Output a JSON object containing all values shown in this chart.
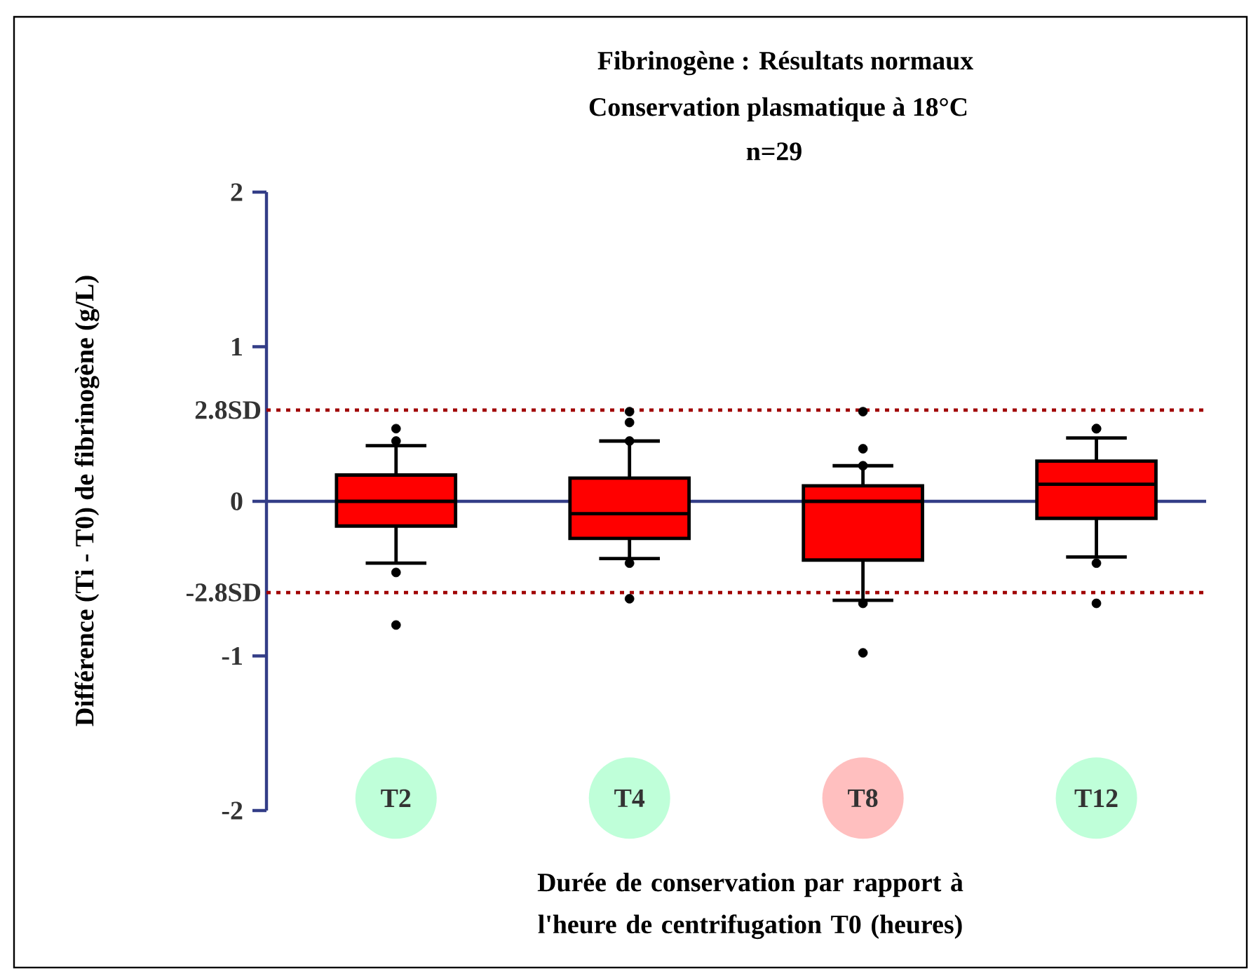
{
  "chart_data": {
    "type": "box",
    "title": "Fibrinogène : Résultats normaux",
    "subtitle": "Conservation plasmatique à 18°C",
    "annotations": [
      "n=29"
    ],
    "xlabel": "Durée de conservation par rapport à l'heure de centrifugation T0 (heures)",
    "ylabel": "Différence (Ti - T0) de fibrinogène (g/L)",
    "categories": [
      "T2",
      "T4",
      "T8",
      "T12"
    ],
    "color": "#ff0000",
    "boxes": [
      {
        "low": -0.4,
        "q1": -0.16,
        "median": 0,
        "q3": 0.17,
        "high": 0.36,
        "outliers": [
          0.47,
          0.39,
          -0.46,
          -0.8
        ]
      },
      {
        "low": -0.37,
        "q1": -0.24,
        "median": -0.08,
        "q3": 0.15,
        "high": 0.39,
        "outliers": [
          0.58,
          0.51,
          0.39,
          -0.4,
          -0.63
        ]
      },
      {
        "low": -0.64,
        "q1": -0.38,
        "median": 0,
        "q3": 0.1,
        "high": 0.23,
        "outliers": [
          0.58,
          0.34,
          0.23,
          -0.66,
          -0.98
        ]
      },
      {
        "low": -0.36,
        "q1": -0.11,
        "median": 0.11,
        "q3": 0.26,
        "high": 0.41,
        "outliers": [
          0.47,
          0.47,
          -0.4,
          -0.66
        ]
      }
    ],
    "ylim": [
      -2,
      2
    ],
    "yticks": [
      -2,
      -1,
      0,
      1,
      2
    ],
    "ref_lines": [
      {
        "axis": "y",
        "value": 0,
        "color": "#333d87",
        "line_style": "solid"
      },
      {
        "axis": "y",
        "value": 0.59,
        "label": "2.8SD",
        "color": "#a00000",
        "line_style": "dotted"
      },
      {
        "axis": "y",
        "value": -0.59,
        "label": "-2.8SD",
        "color": "#a00000",
        "line_style": "dotted"
      }
    ],
    "grid": false
  }
}
